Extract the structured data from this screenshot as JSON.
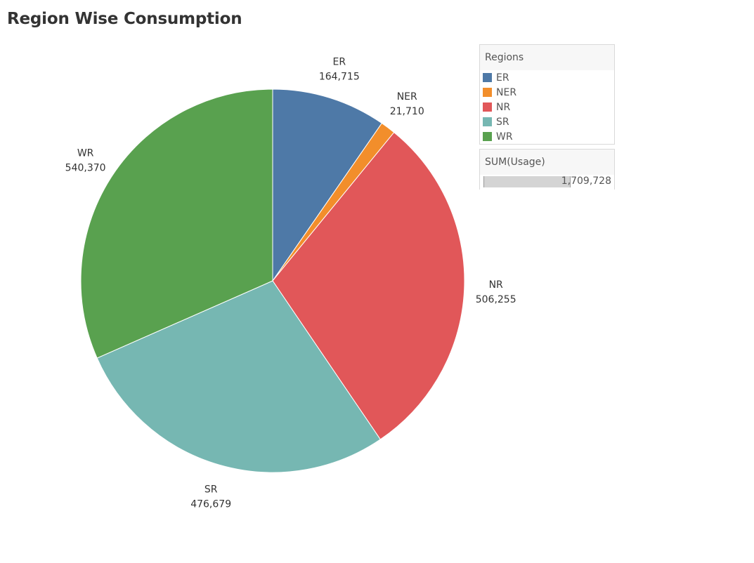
{
  "title": "Region Wise Consumption",
  "legend": {
    "title": "Regions",
    "items": [
      {
        "label": "ER",
        "color": "#4e79a7"
      },
      {
        "label": "NER",
        "color": "#f28e2b"
      },
      {
        "label": "NR",
        "color": "#e15759"
      },
      {
        "label": "SR",
        "color": "#76b7b2"
      },
      {
        "label": "WR",
        "color": "#59a14f"
      }
    ]
  },
  "size_legend": {
    "title": "SUM(Usage)",
    "value": "1,709,728"
  },
  "chart_data": {
    "type": "pie",
    "title": "Region Wise Consumption",
    "categories": [
      "ER",
      "NER",
      "NR",
      "SR",
      "WR"
    ],
    "values": [
      164715,
      21710,
      506255,
      476679,
      540370
    ],
    "value_labels": [
      "164,715",
      "21,710",
      "506,255",
      "476,679",
      "540,370"
    ],
    "colors": [
      "#4e79a7",
      "#f28e2b",
      "#e15759",
      "#76b7b2",
      "#59a14f"
    ],
    "total_label": "1,709,728",
    "legend_position": "top-right"
  }
}
